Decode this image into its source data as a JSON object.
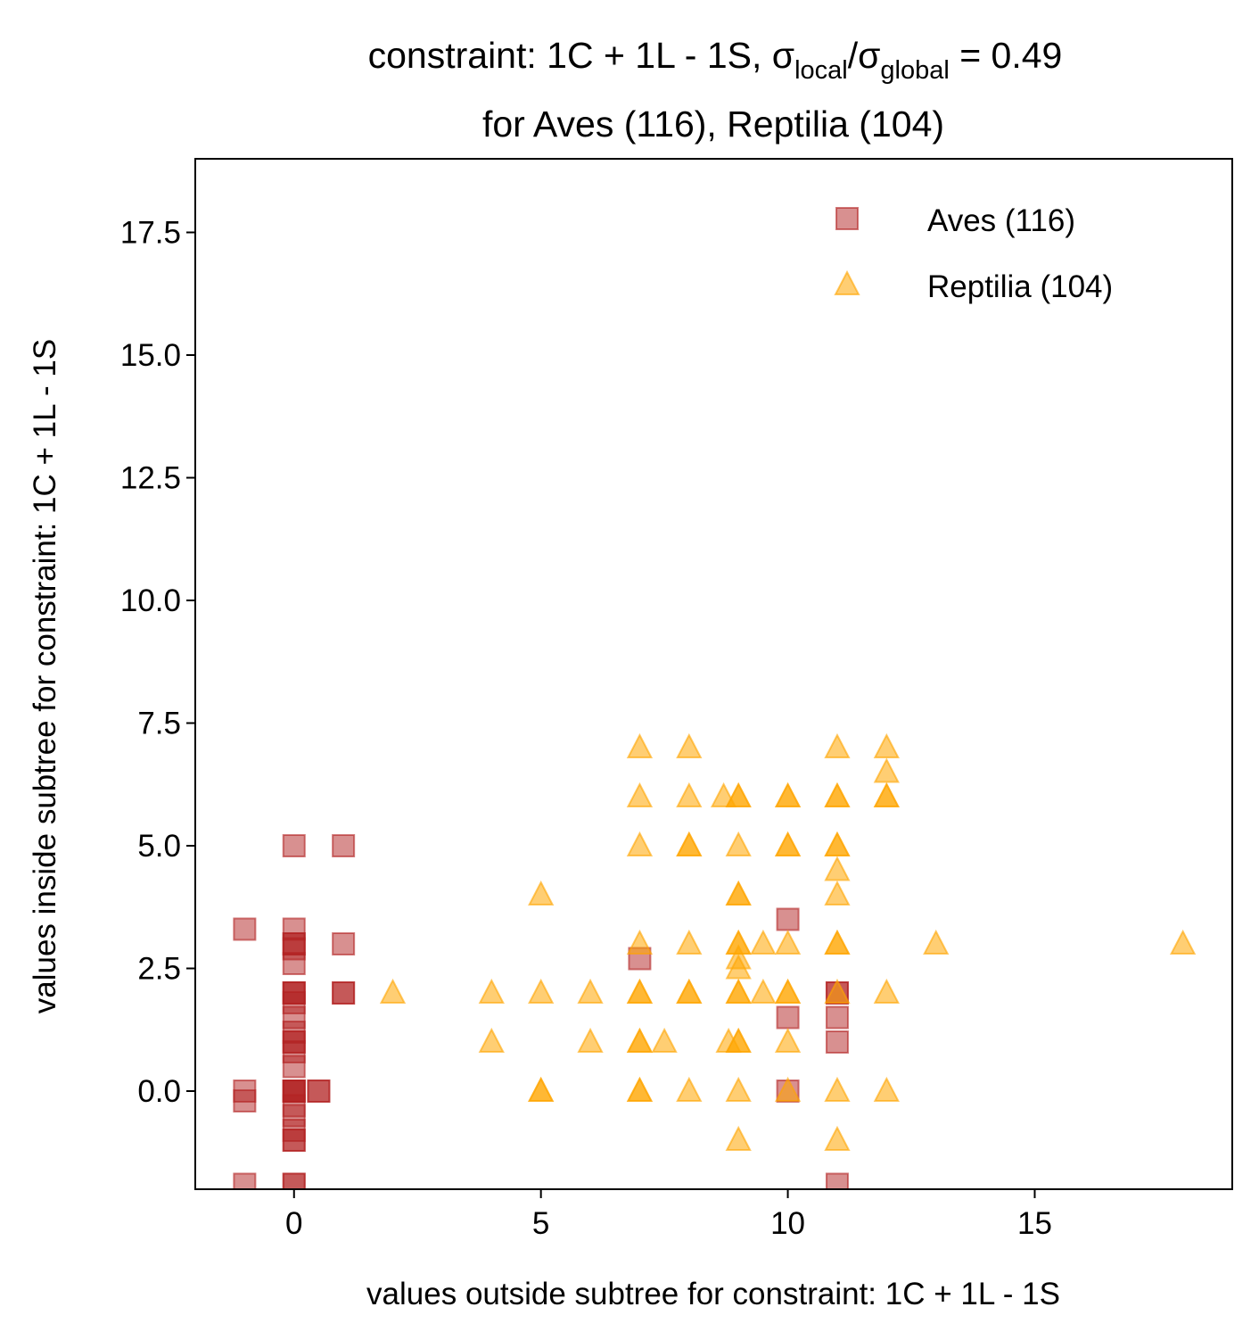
{
  "chart_data": {
    "type": "scatter",
    "title": {
      "line1_prefix": "constraint: 1C + 1L - 1S, σ",
      "line1_sub1": "local",
      "line1_mid": "/σ",
      "line1_sub2": "global",
      "line1_suffix": " =  0.49",
      "line2": "for Aves (116), Reptilia (104)"
    },
    "xlabel": "values outside subtree for constraint: 1C + 1L - 1S",
    "ylabel": "values inside subtree for constraint: 1C + 1L - 1S",
    "xlim": [
      -2,
      19
    ],
    "ylim": [
      -2,
      19
    ],
    "xticks": [
      0,
      5,
      10,
      15
    ],
    "xtick_labels": [
      "0",
      "5",
      "10",
      "15"
    ],
    "yticks": [
      0,
      2.5,
      5,
      7.5,
      10,
      12.5,
      15,
      17.5
    ],
    "ytick_labels": [
      "0.0",
      "2.5",
      "5.0",
      "7.5",
      "10.0",
      "12.5",
      "15.0",
      "17.5"
    ],
    "grid": false,
    "legend": "top-right",
    "series": [
      {
        "name": "Aves (116)",
        "marker": "square",
        "color": "#b22222",
        "points": [
          [
            0,
            5
          ],
          [
            1,
            5
          ],
          [
            -1,
            3.3
          ],
          [
            0,
            3.3
          ],
          [
            0,
            3
          ],
          [
            0,
            3
          ],
          [
            0,
            2.9
          ],
          [
            0,
            2.6
          ],
          [
            1,
            3
          ],
          [
            0,
            2
          ],
          [
            0,
            2
          ],
          [
            0,
            2
          ],
          [
            0,
            1.8
          ],
          [
            1,
            2
          ],
          [
            1,
            2
          ],
          [
            0,
            1.5
          ],
          [
            0,
            1.2
          ],
          [
            0,
            1
          ],
          [
            0,
            1
          ],
          [
            0,
            0.8
          ],
          [
            0,
            0.5
          ],
          [
            0,
            0
          ],
          [
            0,
            0
          ],
          [
            0,
            0
          ],
          [
            0,
            0
          ],
          [
            0.5,
            0
          ],
          [
            0.5,
            0
          ],
          [
            -1,
            0
          ],
          [
            -1,
            -0.2
          ],
          [
            0,
            -0.3
          ],
          [
            0,
            -0.5
          ],
          [
            0,
            -0.8
          ],
          [
            0,
            -1
          ],
          [
            0,
            -1
          ],
          [
            -1,
            -1.9
          ],
          [
            0,
            -1.9
          ],
          [
            0,
            -1.9
          ],
          [
            7,
            2.7
          ],
          [
            10,
            3.5
          ],
          [
            10,
            1.5
          ],
          [
            10,
            0
          ],
          [
            11,
            2
          ],
          [
            11,
            2
          ],
          [
            11,
            1.5
          ],
          [
            11,
            1
          ],
          [
            11,
            -1.9
          ]
        ]
      },
      {
        "name": "Reptilia (104)",
        "marker": "triangle",
        "color": "#ffa500",
        "points": [
          [
            7,
            7
          ],
          [
            8,
            7
          ],
          [
            11,
            7
          ],
          [
            12,
            7
          ],
          [
            12,
            6.5
          ],
          [
            7,
            6
          ],
          [
            8,
            6
          ],
          [
            8.7,
            6
          ],
          [
            9,
            6
          ],
          [
            9,
            6
          ],
          [
            10,
            6
          ],
          [
            10,
            6
          ],
          [
            11,
            6
          ],
          [
            11,
            6
          ],
          [
            12,
            6
          ],
          [
            12,
            6
          ],
          [
            7,
            5
          ],
          [
            8,
            5
          ],
          [
            8,
            5
          ],
          [
            9,
            5
          ],
          [
            10,
            5
          ],
          [
            10,
            5
          ],
          [
            11,
            5
          ],
          [
            11,
            5
          ],
          [
            11,
            4.5
          ],
          [
            5,
            4
          ],
          [
            9,
            4
          ],
          [
            9,
            4
          ],
          [
            11,
            4
          ],
          [
            7,
            3
          ],
          [
            8,
            3
          ],
          [
            9,
            3
          ],
          [
            9,
            3
          ],
          [
            9.5,
            3
          ],
          [
            10,
            3
          ],
          [
            11,
            3
          ],
          [
            11,
            3
          ],
          [
            13,
            3
          ],
          [
            18,
            3
          ],
          [
            9,
            2.7
          ],
          [
            9,
            2.5
          ],
          [
            2,
            2
          ],
          [
            4,
            2
          ],
          [
            5,
            2
          ],
          [
            6,
            2
          ],
          [
            7,
            2
          ],
          [
            7,
            2
          ],
          [
            8,
            2
          ],
          [
            8,
            2
          ],
          [
            9,
            2
          ],
          [
            9,
            2
          ],
          [
            9.5,
            2
          ],
          [
            10,
            2
          ],
          [
            10,
            2
          ],
          [
            11,
            2
          ],
          [
            12,
            2
          ],
          [
            4,
            1
          ],
          [
            6,
            1
          ],
          [
            7,
            1
          ],
          [
            7,
            1
          ],
          [
            7.5,
            1
          ],
          [
            8.8,
            1
          ],
          [
            9,
            1
          ],
          [
            9,
            1
          ],
          [
            10,
            1
          ],
          [
            5,
            0
          ],
          [
            5,
            0
          ],
          [
            7,
            0
          ],
          [
            7,
            0
          ],
          [
            8,
            0
          ],
          [
            9,
            0
          ],
          [
            10,
            0
          ],
          [
            11,
            0
          ],
          [
            12,
            0
          ],
          [
            9,
            -1
          ],
          [
            11,
            -1
          ]
        ]
      }
    ]
  }
}
